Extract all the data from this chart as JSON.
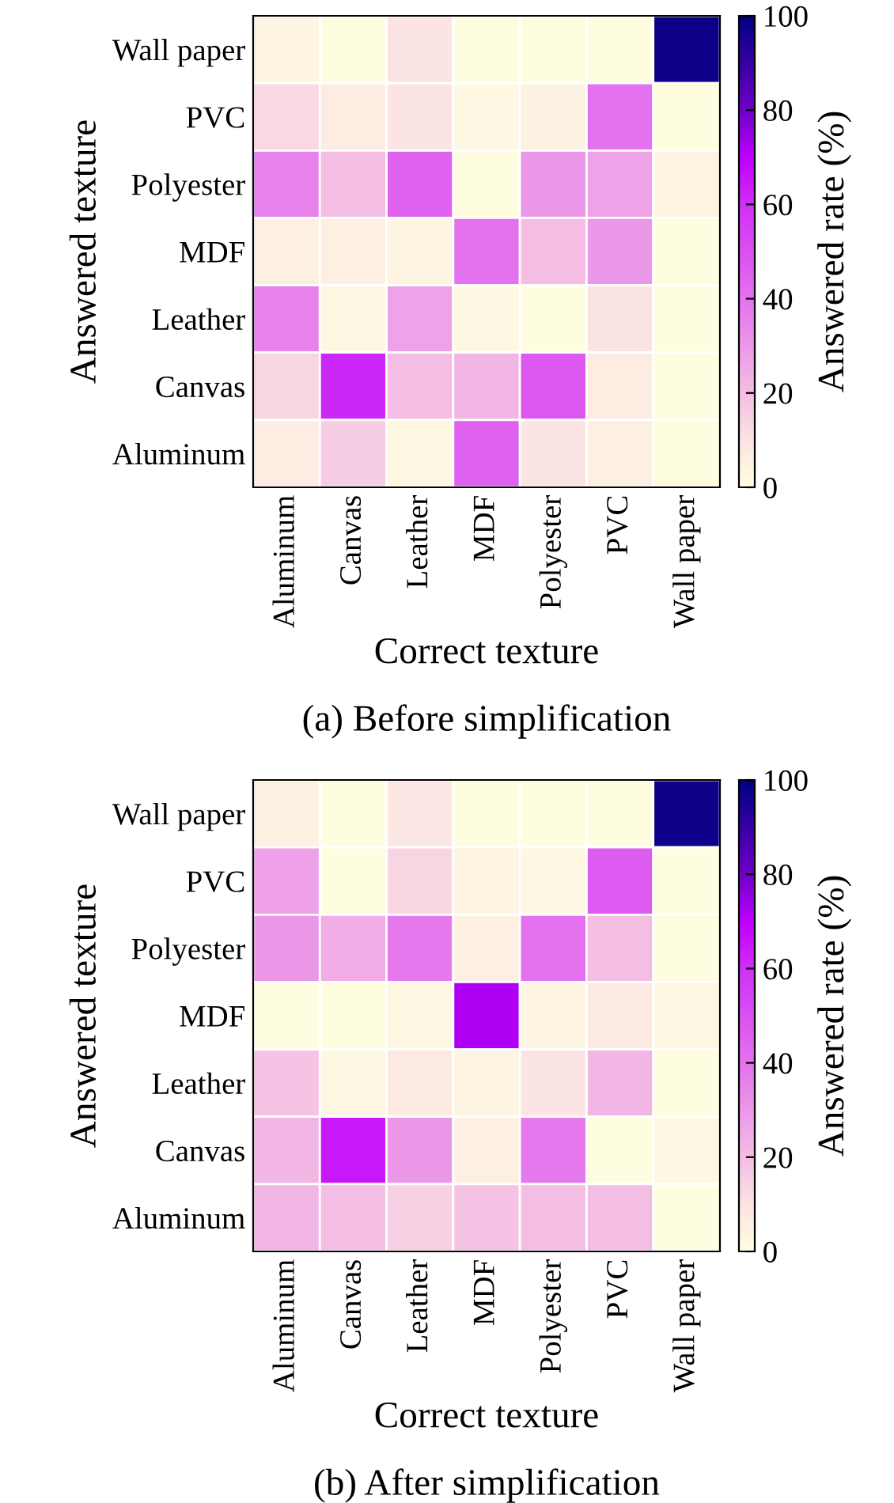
{
  "chart_data": [
    {
      "type": "heatmap",
      "xlabel": "Correct texture",
      "ylabel": "Answered texture",
      "clabel": "Answered rate (%)",
      "annotations": [
        "(a) Before simplification"
      ],
      "categories": [
        "Aluminum",
        "Canvas",
        "Leather",
        "MDF",
        "Polyester",
        "PVC",
        "Wall paper"
      ],
      "y_categories": [
        "Wall paper",
        "PVC",
        "Polyester",
        "MDF",
        "Leather",
        "Canvas",
        "Aluminum"
      ],
      "cells": [
        [
          4,
          1,
          10,
          1,
          1,
          1,
          98
        ],
        [
          13,
          7,
          10,
          3,
          5,
          40,
          1
        ],
        [
          36,
          20,
          45,
          1,
          30,
          27,
          4
        ],
        [
          6,
          6,
          4,
          40,
          20,
          30,
          1
        ],
        [
          36,
          3,
          27,
          3,
          1,
          10,
          1
        ],
        [
          14,
          62,
          20,
          22,
          48,
          7,
          1
        ],
        [
          7,
          16,
          3,
          45,
          10,
          6,
          1
        ]
      ],
      "clim": [
        0,
        100
      ],
      "cticks": [
        0,
        20,
        40,
        60,
        80,
        100
      ]
    },
    {
      "type": "heatmap",
      "xlabel": "Correct texture",
      "ylabel": "Answered texture",
      "clabel": "Answered rate (%)",
      "annotations": [
        "(b) After simplification"
      ],
      "categories": [
        "Aluminum",
        "Canvas",
        "Leather",
        "MDF",
        "Polyester",
        "PVC",
        "Wall paper"
      ],
      "y_categories": [
        "Wall paper",
        "PVC",
        "Polyester",
        "MDF",
        "Leather",
        "Canvas",
        "Aluminum"
      ],
      "cells": [
        [
          5,
          1,
          9,
          1,
          1,
          1,
          97
        ],
        [
          28,
          1,
          14,
          4,
          3,
          47,
          1
        ],
        [
          30,
          24,
          38,
          6,
          40,
          20,
          1
        ],
        [
          1,
          1,
          3,
          72,
          4,
          8,
          3
        ],
        [
          18,
          3,
          8,
          4,
          10,
          22,
          1
        ],
        [
          22,
          65,
          30,
          6,
          38,
          1,
          3
        ],
        [
          22,
          20,
          15,
          18,
          20,
          20,
          1
        ]
      ],
      "clim": [
        0,
        100
      ],
      "cticks": [
        0,
        20,
        40,
        60,
        80,
        100
      ]
    }
  ]
}
